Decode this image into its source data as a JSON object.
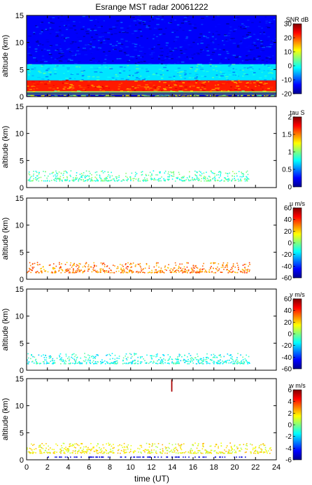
{
  "chart_data": {
    "title": "Esrange MST radar 20061222",
    "xlabel": "time (UT)",
    "xlim": [
      0,
      24
    ],
    "x_ticks": [
      "0",
      "2",
      "4",
      "6",
      "8",
      "10",
      "12",
      "14",
      "16",
      "18",
      "20",
      "22",
      "24"
    ],
    "ylabel": "altitude (km)",
    "ylim": [
      0,
      15
    ],
    "y_ticks": [
      "0",
      "5",
      "10",
      "15"
    ],
    "panels": [
      {
        "type": "heatmap",
        "colorbar_label": "SNR dB",
        "clim": [
          -20,
          30
        ],
        "colorbar_ticks": [
          "30",
          "20",
          "10",
          "0",
          "-10",
          "-20"
        ],
        "colormap": "jet",
        "layers": [
          {
            "alt_range": [
              0.3,
              1.0
            ],
            "level": "high",
            "description_value": 0.55
          },
          {
            "alt_range": [
              1.0,
              3.0
            ],
            "level": "very high",
            "description_value": 0.85
          },
          {
            "alt_range": [
              3.0,
              6.0
            ],
            "level": "medium",
            "description_value": 0.35
          },
          {
            "alt_range": [
              6.0,
              15.0
            ],
            "level": "low",
            "description_value": 0.12
          }
        ]
      },
      {
        "type": "scatter",
        "colorbar_label": "tau S",
        "clim": [
          0,
          2
        ],
        "colorbar_ticks": [
          "2",
          "1.5",
          "1",
          "0.5",
          "0"
        ],
        "colormap": "jet",
        "echo_alt_range": [
          1.3,
          3.2
        ],
        "typical_value": 0.9,
        "time_extent": [
          0,
          21.4
        ]
      },
      {
        "type": "scatter",
        "colorbar_label": "u m/s",
        "clim": [
          -60,
          60
        ],
        "colorbar_ticks": [
          "60",
          "40",
          "20",
          "0",
          "-20",
          "-40",
          "-60"
        ],
        "colormap": "jet",
        "echo_alt_range": [
          1.3,
          3.2
        ],
        "typical_value": 30,
        "time_extent": [
          0,
          21.4
        ]
      },
      {
        "type": "scatter",
        "colorbar_label": "v m/s",
        "clim": [
          -60,
          60
        ],
        "colorbar_ticks": [
          "60",
          "40",
          "20",
          "0",
          "-20",
          "-40",
          "-60"
        ],
        "colormap": "jet",
        "echo_alt_range": [
          1.3,
          3.2
        ],
        "typical_value": -12,
        "time_extent": [
          0,
          21.4
        ]
      },
      {
        "type": "scatter",
        "colorbar_label": "w m/s",
        "clim": [
          -6,
          6
        ],
        "colorbar_ticks": [
          "6",
          "4",
          "2",
          "0",
          "-2",
          "-4",
          "-6"
        ],
        "colormap": "jet",
        "echo_alt_range": [
          1.3,
          3.2
        ],
        "typical_value": 1.5,
        "near_ground_value": -5,
        "spike": {
          "time": 13.9,
          "alt_range": [
            12.8,
            14.9
          ],
          "value": 5.5
        },
        "time_extent": [
          0,
          23.5
        ]
      }
    ]
  }
}
